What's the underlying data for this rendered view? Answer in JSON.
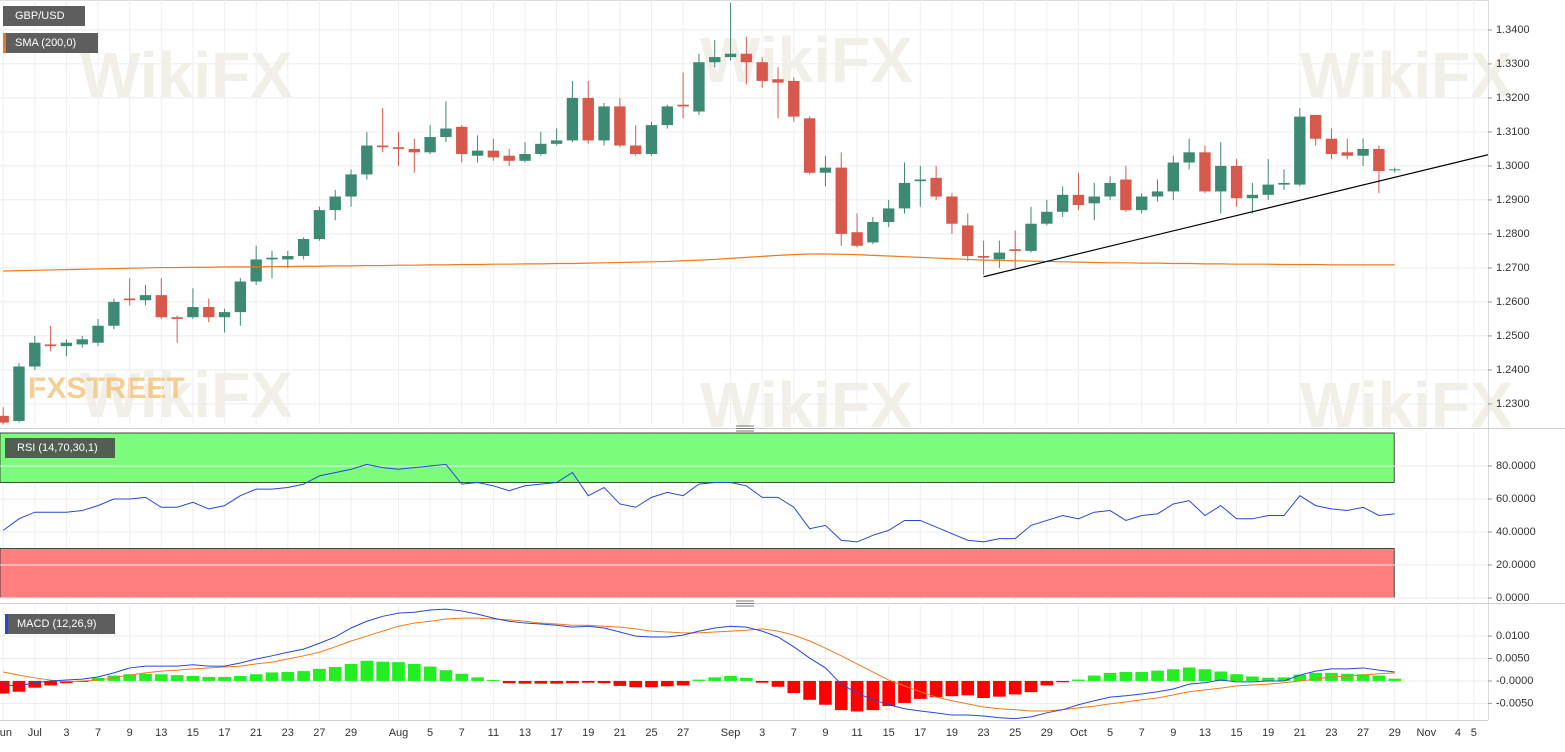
{
  "chart_data": [
    {
      "type": "candlestick",
      "title": "GBP/USD",
      "up_color": "#3d8a74",
      "down_color": "#d6594b",
      "open": [
        1.2265,
        1.225,
        1.241,
        1.2475,
        1.247,
        1.2475,
        1.248,
        1.253,
        1.261,
        1.2605,
        1.262,
        1.2555,
        1.2555,
        1.2585,
        1.2555,
        1.257,
        1.266,
        1.2725,
        1.2725,
        1.2735,
        1.2785,
        1.287,
        1.291,
        1.2975,
        1.306,
        1.3055,
        1.305,
        1.304,
        1.3085,
        1.3115,
        1.303,
        1.3045,
        1.303,
        1.3015,
        1.3035,
        1.3065,
        1.3075,
        1.32,
        1.3075,
        1.3175,
        1.306,
        1.3035,
        1.312,
        1.318,
        1.316,
        1.3305,
        1.332,
        1.333,
        1.3305,
        1.3255,
        1.325,
        1.314,
        1.298,
        1.2995,
        1.2805,
        1.2775,
        1.2835,
        1.2875,
        1.2955,
        1.2965,
        1.291,
        1.2825,
        1.2735,
        1.2725,
        1.2755,
        1.275,
        1.283,
        1.2865,
        1.2915,
        1.289,
        1.291,
        1.296,
        1.287,
        1.291,
        1.2925,
        1.301,
        1.304,
        1.2925,
        1.3,
        1.2905,
        1.2915,
        1.2945,
        1.2945,
        1.315,
        1.308,
        1.304,
        1.303,
        1.305,
        1.299
      ],
      "high": [
        1.229,
        1.242,
        1.25,
        1.253,
        1.249,
        1.25,
        1.255,
        1.261,
        1.267,
        1.265,
        1.267,
        1.256,
        1.264,
        1.261,
        1.258,
        1.267,
        1.2765,
        1.275,
        1.275,
        1.279,
        1.288,
        1.293,
        1.299,
        1.31,
        1.317,
        1.31,
        1.308,
        1.312,
        1.319,
        1.312,
        1.309,
        1.308,
        1.305,
        1.307,
        1.31,
        1.311,
        1.325,
        1.325,
        1.3185,
        1.32,
        1.312,
        1.313,
        1.318,
        1.3275,
        1.333,
        1.337,
        1.348,
        1.338,
        1.332,
        1.329,
        1.326,
        1.3145,
        1.303,
        1.304,
        1.286,
        1.285,
        1.29,
        1.301,
        1.3,
        1.3,
        1.292,
        1.286,
        1.278,
        1.278,
        1.281,
        1.288,
        1.29,
        1.294,
        1.298,
        1.295,
        1.297,
        1.3,
        1.292,
        1.296,
        1.303,
        1.308,
        1.306,
        1.307,
        1.302,
        1.295,
        1.302,
        1.299,
        1.317,
        1.315,
        1.311,
        1.308,
        1.308,
        1.306,
        1.2995
      ],
      "low": [
        1.224,
        1.2245,
        1.24,
        1.2455,
        1.244,
        1.2465,
        1.247,
        1.252,
        1.259,
        1.259,
        1.255,
        1.248,
        1.255,
        1.254,
        1.251,
        1.253,
        1.265,
        1.267,
        1.27,
        1.2725,
        1.278,
        1.284,
        1.288,
        1.296,
        1.304,
        1.3,
        1.298,
        1.3035,
        1.307,
        1.301,
        1.301,
        1.3015,
        1.3,
        1.301,
        1.303,
        1.306,
        1.307,
        1.3065,
        1.306,
        1.3055,
        1.303,
        1.303,
        1.311,
        1.314,
        1.315,
        1.329,
        1.331,
        1.324,
        1.323,
        1.314,
        1.313,
        1.2975,
        1.294,
        1.2765,
        1.276,
        1.277,
        1.282,
        1.286,
        1.288,
        1.29,
        1.28,
        1.272,
        1.268,
        1.27,
        1.27,
        1.2745,
        1.2825,
        1.285,
        1.287,
        1.284,
        1.29,
        1.2865,
        1.286,
        1.2895,
        1.29,
        1.299,
        1.292,
        1.286,
        1.288,
        1.286,
        1.29,
        1.293,
        1.294,
        1.306,
        1.302,
        1.302,
        1.3,
        1.292,
        1.298
      ],
      "close": [
        1.2245,
        1.241,
        1.248,
        1.247,
        1.248,
        1.249,
        1.253,
        1.26,
        1.2605,
        1.262,
        1.2555,
        1.255,
        1.2585,
        1.2555,
        1.257,
        1.266,
        1.2725,
        1.273,
        1.2735,
        1.2785,
        1.287,
        1.291,
        1.2975,
        1.306,
        1.3055,
        1.305,
        1.304,
        1.3085,
        1.311,
        1.3035,
        1.3045,
        1.3025,
        1.3015,
        1.3035,
        1.3065,
        1.3075,
        1.32,
        1.3075,
        1.3175,
        1.306,
        1.3035,
        1.312,
        1.3175,
        1.3175,
        1.3305,
        1.332,
        1.333,
        1.3305,
        1.325,
        1.3245,
        1.3145,
        1.298,
        1.2995,
        1.28,
        1.2765,
        1.2835,
        1.2875,
        1.295,
        1.296,
        1.291,
        1.283,
        1.2735,
        1.273,
        1.2745,
        1.275,
        1.283,
        1.2865,
        1.2915,
        1.2885,
        1.291,
        1.295,
        1.287,
        1.291,
        1.2925,
        1.301,
        1.304,
        1.2925,
        1.3,
        1.2905,
        1.2915,
        1.2945,
        1.295,
        1.3145,
        1.308,
        1.3035,
        1.303,
        1.305,
        1.2985,
        1.299
      ],
      "overlays": [
        {
          "name": "SMA (200,0)",
          "color": "#f07a1a",
          "values": [
            1.2691,
            1.2692,
            1.2693,
            1.2694,
            1.2695,
            1.2696,
            1.2697,
            1.2698,
            1.2699,
            1.27,
            1.2701,
            1.2701,
            1.2702,
            1.2702,
            1.2703,
            1.2703,
            1.2703,
            1.2704,
            1.2704,
            1.2705,
            1.2705,
            1.2706,
            1.2706,
            1.2707,
            1.2707,
            1.2708,
            1.2708,
            1.2709,
            1.2709,
            1.271,
            1.271,
            1.2711,
            1.2711,
            1.2712,
            1.2712,
            1.2713,
            1.2713,
            1.2714,
            1.2715,
            1.2716,
            1.2717,
            1.2718,
            1.2719,
            1.2721,
            1.2723,
            1.2725,
            1.2728,
            1.2731,
            1.2734,
            1.2737,
            1.2739,
            1.2741,
            1.2741,
            1.274,
            1.2739,
            1.2737,
            1.2735,
            1.2733,
            1.2731,
            1.2729,
            1.2727,
            1.2725,
            1.2723,
            1.2722,
            1.2721,
            1.272,
            1.2719,
            1.2718,
            1.2717,
            1.2716,
            1.2715,
            1.2715,
            1.2714,
            1.2714,
            1.2713,
            1.2713,
            1.2712,
            1.2712,
            1.2711,
            1.2711,
            1.2711,
            1.271,
            1.271,
            1.271,
            1.2709,
            1.2709,
            1.2709,
            1.2709,
            1.2709
          ]
        }
      ],
      "trendline": {
        "x": [
          62,
          93.9
        ],
        "values": [
          1.2674,
          1.3033
        ],
        "color": "#000000"
      },
      "ylim": [
        1.2238,
        1.3488
      ],
      "yticks": [
        {
          "value": 1.23,
          "label": "1.2300"
        },
        {
          "value": 1.24,
          "label": "1.2400"
        },
        {
          "value": 1.25,
          "label": "1.2500"
        },
        {
          "value": 1.26,
          "label": "1.2600"
        },
        {
          "value": 1.27,
          "label": "1.2700"
        },
        {
          "value": 1.28,
          "label": "1.2800"
        },
        {
          "value": 1.29,
          "label": "1.2900"
        },
        {
          "value": 1.3,
          "label": "1.3000"
        },
        {
          "value": 1.31,
          "label": "1.3100"
        },
        {
          "value": 1.32,
          "label": "1.3200"
        },
        {
          "value": 1.33,
          "label": "1.3300"
        },
        {
          "value": 1.34,
          "label": "1.3400"
        }
      ],
      "grid": true
    },
    {
      "type": "line",
      "title": "RSI (14,70,30,1)",
      "color": "#2747d6",
      "values": [
        41,
        48,
        52,
        52,
        52,
        53,
        56,
        60,
        60,
        61,
        55,
        55,
        58,
        54,
        56,
        62,
        66,
        66,
        67,
        69,
        74,
        76,
        78,
        81,
        79,
        78,
        79,
        80,
        81,
        69,
        70,
        68,
        65,
        68,
        69,
        70,
        76,
        62,
        67,
        57,
        55,
        61,
        64,
        62,
        69,
        70,
        70,
        68,
        61,
        61,
        55,
        42,
        44,
        35,
        34,
        38,
        41,
        47,
        47,
        43,
        39,
        35,
        34,
        36,
        36,
        44,
        47,
        50,
        48,
        52,
        53,
        47,
        50,
        51,
        57,
        59,
        50,
        56,
        48,
        48,
        50,
        50,
        62,
        56,
        54,
        53,
        55,
        50,
        51
      ],
      "bands": [
        {
          "from": 70,
          "to": 100,
          "color": "#7dfb7d"
        },
        {
          "from": 0,
          "to": 30,
          "color": "#ff7f7f"
        }
      ],
      "ylim": [
        -1.2,
        100.6
      ],
      "yticks": [
        {
          "value": 0,
          "label": "0.0000"
        },
        {
          "value": 20,
          "label": "20.0000"
        },
        {
          "value": 40,
          "label": "40.0000"
        },
        {
          "value": 60,
          "label": "60.0000"
        },
        {
          "value": 80,
          "label": "80.0000"
        }
      ],
      "grid": true
    },
    {
      "type": "macd",
      "title": "MACD (12,26,9)",
      "macd": {
        "color": "#2747d6",
        "values": [
          -0.0009,
          -0.0011,
          -0.0004,
          0,
          0.0002,
          0.0004,
          0.0009,
          0.0018,
          0.0029,
          0.0033,
          0.0033,
          0.0033,
          0.0036,
          0.0033,
          0.0033,
          0.004,
          0.0049,
          0.0056,
          0.0064,
          0.0071,
          0.0084,
          0.0098,
          0.0118,
          0.0133,
          0.0144,
          0.0151,
          0.0153,
          0.0158,
          0.016,
          0.0156,
          0.0149,
          0.014,
          0.0133,
          0.0129,
          0.0127,
          0.0124,
          0.012,
          0.0122,
          0.0118,
          0.0109,
          0.01,
          0.0098,
          0.0098,
          0.0102,
          0.0111,
          0.0118,
          0.0122,
          0.012,
          0.0111,
          0.0098,
          0.0076,
          0.0051,
          0.0029,
          -0.0007,
          -0.0027,
          -0.0042,
          -0.0053,
          -0.0062,
          -0.0067,
          -0.0071,
          -0.0076,
          -0.0076,
          -0.0078,
          -0.0082,
          -0.0084,
          -0.008,
          -0.0071,
          -0.0064,
          -0.0053,
          -0.0044,
          -0.0036,
          -0.0033,
          -0.0029,
          -0.0024,
          -0.0018,
          -0.0007,
          -0.0004,
          0.0002,
          -0.0002,
          -0.0002,
          0,
          0,
          0.0013,
          0.0022,
          0.0027,
          0.0027,
          0.0029,
          0.0024,
          0.002
        ]
      },
      "signal": {
        "color": "#f07a1a",
        "values": [
          0.002,
          0.0013,
          0.0007,
          0.0002,
          -0.0002,
          0,
          0.0002,
          0.0007,
          0.0013,
          0.0018,
          0.0022,
          0.0024,
          0.0027,
          0.0029,
          0.0031,
          0.0033,
          0.0038,
          0.0042,
          0.0049,
          0.0056,
          0.0064,
          0.0076,
          0.0089,
          0.01,
          0.0111,
          0.0122,
          0.0129,
          0.0133,
          0.0138,
          0.014,
          0.014,
          0.0138,
          0.0136,
          0.0133,
          0.0129,
          0.0127,
          0.0124,
          0.0124,
          0.0122,
          0.012,
          0.0116,
          0.0111,
          0.0109,
          0.0107,
          0.0107,
          0.0109,
          0.0111,
          0.0113,
          0.0116,
          0.0111,
          0.0102,
          0.0089,
          0.0073,
          0.0056,
          0.0038,
          0.002,
          0.0002,
          -0.0011,
          -0.0024,
          -0.0036,
          -0.0044,
          -0.0051,
          -0.0058,
          -0.0062,
          -0.0064,
          -0.0067,
          -0.0067,
          -0.0064,
          -0.006,
          -0.0056,
          -0.0051,
          -0.0047,
          -0.0042,
          -0.0038,
          -0.0031,
          -0.0024,
          -0.002,
          -0.0016,
          -0.0011,
          -0.0009,
          -0.0007,
          -0.0004,
          0,
          0.0004,
          0.0009,
          0.0011,
          0.0013,
          0.0016,
          0.0018
        ]
      },
      "histogram": {
        "up_color": "#22ee22",
        "down_color": "#ff0000",
        "values": [
          -0.0028,
          -0.0024,
          -0.0015,
          -0.001,
          -0.0005,
          -0.0002,
          0.0007,
          0.0012,
          0.0015,
          0.0016,
          0.0015,
          0.0013,
          0.0011,
          0.0009,
          0.0009,
          0.0011,
          0.0015,
          0.0019,
          0.002,
          0.0022,
          0.0027,
          0.0031,
          0.0038,
          0.0045,
          0.0043,
          0.0042,
          0.0038,
          0.0032,
          0.0024,
          0.0016,
          0.0008,
          0.0002,
          -0.0005,
          -0.0006,
          -0.0006,
          -0.0006,
          -0.0005,
          -0.0004,
          -0.0005,
          -0.0011,
          -0.0014,
          -0.0014,
          -0.0012,
          -0.001,
          0.0003,
          0.0008,
          0.0011,
          0.0007,
          -0.0004,
          -0.0013,
          -0.0027,
          -0.0042,
          -0.0053,
          -0.0065,
          -0.0068,
          -0.0065,
          -0.0056,
          -0.0049,
          -0.004,
          -0.0036,
          -0.0034,
          -0.0032,
          -0.0038,
          -0.0035,
          -0.003,
          -0.0025,
          -0.001,
          -0.0003,
          0.0003,
          0.0012,
          0.0018,
          0.002,
          0.002,
          0.0023,
          0.0026,
          0.003,
          0.0026,
          0.0021,
          0.0015,
          0.001,
          0.0007,
          0.0008,
          0.0014,
          0.0018,
          0.0018,
          0.0016,
          0.0015,
          0.0012,
          0.0005
        ]
      },
      "ylim": [
        -0.0087,
        0.0167
      ],
      "yticks": [
        {
          "value": -0.005,
          "label": "-0.0050"
        },
        {
          "value": 0,
          "label": "-0.0000"
        },
        {
          "value": 0.005,
          "label": "0.0050"
        },
        {
          "value": 0.01,
          "label": "0.0100"
        }
      ],
      "grid": true,
      "xlim": [
        -0.2,
        93.9
      ],
      "xticks": [
        {
          "value": 0,
          "label": "Jun"
        },
        {
          "value": 2,
          "label": "Jul"
        },
        {
          "value": 4,
          "label": "3"
        },
        {
          "value": 6,
          "label": "7"
        },
        {
          "value": 8,
          "label": "9"
        },
        {
          "value": 10,
          "label": "13"
        },
        {
          "value": 12,
          "label": "15"
        },
        {
          "value": 14,
          "label": "17"
        },
        {
          "value": 16,
          "label": "21"
        },
        {
          "value": 18,
          "label": "23"
        },
        {
          "value": 20,
          "label": "27"
        },
        {
          "value": 22,
          "label": "29"
        },
        {
          "value": 25,
          "label": "Aug"
        },
        {
          "value": 27,
          "label": "5"
        },
        {
          "value": 29,
          "label": "7"
        },
        {
          "value": 31,
          "label": "11"
        },
        {
          "value": 33,
          "label": "13"
        },
        {
          "value": 35,
          "label": "17"
        },
        {
          "value": 37,
          "label": "19"
        },
        {
          "value": 39,
          "label": "21"
        },
        {
          "value": 41,
          "label": "25"
        },
        {
          "value": 43,
          "label": "27"
        },
        {
          "value": 46,
          "label": "Sep"
        },
        {
          "value": 48,
          "label": "3"
        },
        {
          "value": 50,
          "label": "7"
        },
        {
          "value": 52,
          "label": "9"
        },
        {
          "value": 54,
          "label": "11"
        },
        {
          "value": 56,
          "label": "15"
        },
        {
          "value": 58,
          "label": "17"
        },
        {
          "value": 60,
          "label": "19"
        },
        {
          "value": 62,
          "label": "23"
        },
        {
          "value": 64,
          "label": "25"
        },
        {
          "value": 66,
          "label": "29"
        },
        {
          "value": 68,
          "label": "Oct"
        },
        {
          "value": 70,
          "label": "5"
        },
        {
          "value": 72,
          "label": "7"
        },
        {
          "value": 74,
          "label": "9"
        },
        {
          "value": 76,
          "label": "13"
        },
        {
          "value": 78,
          "label": "15"
        },
        {
          "value": 80,
          "label": "19"
        },
        {
          "value": 82,
          "label": "21"
        },
        {
          "value": 84,
          "label": "23"
        },
        {
          "value": 86,
          "label": "27"
        },
        {
          "value": 88,
          "label": "29"
        },
        {
          "value": 90,
          "label": "Nov"
        },
        {
          "value": 92,
          "label": "4"
        },
        {
          "value": 93,
          "label": "5"
        }
      ]
    }
  ],
  "watermark": "WikiFX",
  "logo": "FXSTREET"
}
